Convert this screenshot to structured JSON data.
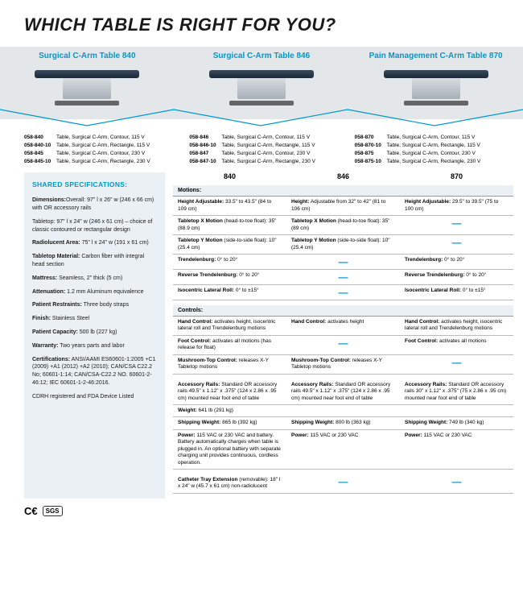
{
  "title": "WHICH TABLE IS RIGHT FOR YOU?",
  "products": [
    {
      "label": "Surgical C-Arm Table 840"
    },
    {
      "label": "Surgical C-Arm Table 846"
    },
    {
      "label": "Pain Management C-Arm Table 870"
    }
  ],
  "skus": [
    [
      {
        "code": "058-840",
        "desc": "Table, Surgical C-Arm, Contour, 115 V"
      },
      {
        "code": "058-840-10",
        "desc": "Table, Surgical C-Arm, Rectangle, 115 V"
      },
      {
        "code": "058-845",
        "desc": "Table, Surgical C-Arm, Contour, 230 V"
      },
      {
        "code": "058-845-10",
        "desc": "Table, Surgical C-Arm, Rectangle, 230 V"
      }
    ],
    [
      {
        "code": "058-846",
        "desc": "Table, Surgical C-Arm, Contour, 115 V"
      },
      {
        "code": "058-846-10",
        "desc": "Table, Surgical C-Arm, Rectangle, 115 V"
      },
      {
        "code": "058-847",
        "desc": "Table, Surgical C-Arm, Contour, 230 V"
      },
      {
        "code": "058-847-10",
        "desc": "Table, Surgical C-Arm, Rectangle, 230 V"
      }
    ],
    [
      {
        "code": "058-870",
        "desc": "Table, Surgical C-Arm, Contour, 115 V"
      },
      {
        "code": "058-870-10",
        "desc": "Table, Surgical C-Arm, Rectangle, 115 V"
      },
      {
        "code": "058-875",
        "desc": "Table, Surgical C-Arm, Contour, 230 V"
      },
      {
        "code": "058-875-10",
        "desc": "Table, Surgical C-Arm, Rectangle, 230 V"
      }
    ]
  ],
  "shared_title": "SHARED SPECIFICATIONS:",
  "shared": [
    {
      "label": "Dimensions:",
      "text": "Overall: 97\" l x 26\" w (246 x 66 cm) with OR accessory rails"
    },
    {
      "label": "",
      "text": "Tabletop: 97\" l x 24\" w (246 x 61 cm) – choice of classic contoured or rectangular design"
    },
    {
      "label": "Radiolucent Area:",
      "text": " 75\" l x 24\" w (191 x 61 cm)"
    },
    {
      "label": "Tabletop Material:",
      "text": " Carbon fiber with integral head section"
    },
    {
      "label": "Mattress:",
      "text": " Seamless, 2\" thick (5 cm)"
    },
    {
      "label": "Attenuation:",
      "text": " 1.2 mm Aluminum equivalence"
    },
    {
      "label": "Patient Restraints:",
      "text": " Three body straps"
    },
    {
      "label": "Finish:",
      "text": " Stainless Steel"
    },
    {
      "label": "Patient Capacity:",
      "text": " 500 lb (227 kg)"
    },
    {
      "label": "Warranty:",
      "text": " Two years parts and labor"
    },
    {
      "label": "Certifications:",
      "text": " ANSI/AAMI ES60601-1:2005 +C1 (2009) +A1 (2012) +A2 (2010); CAN/CSA C22.2 No; 60601-1:14; CAN/CSA-C22.2 NO. 60601-2-46:12; IEC 60601-1-2-46:2016."
    },
    {
      "label": "",
      "text": "CDRH registered and FDA Device Listed"
    }
  ],
  "cols": [
    "840",
    "846",
    "870"
  ],
  "sections": [
    {
      "label": "Motions:",
      "rows": [
        {
          "c": [
            "<strong>Height Adjustable:</strong> 33.5\" to 43.5\" (84 to 109 cm)",
            "<strong>Height:</strong> Adjustable from 32\" to 42\" (81 to 106 cm)",
            "<strong>Height Adjustable:</strong> 29.5\" to 39.5\" (75 to 100 cm)"
          ]
        },
        {
          "c": [
            "<strong>Tabletop X Motion</strong> (head-to-toe float): 35\" (88.9 cm)",
            "<strong>Tabletop X Motion</strong> (head-to-toe float): 35\" (89 cm)",
            "—"
          ]
        },
        {
          "c": [
            "<strong>Tabletop Y Motion</strong> (side-to-side float): 10\" (25.4 cm)",
            "<strong>Tabletop Y Motion</strong> (side-to-side float): 10\" (25.4 cm)",
            "—"
          ]
        },
        {
          "c": [
            "<strong>Trendelenburg:</strong> 0° to 20°",
            "—",
            "<strong>Trendelenburg:</strong> 0° to 20°"
          ]
        },
        {
          "c": [
            "<strong>Reverse Trendelenburg:</strong> 0° to 20°",
            "—",
            "<strong>Reverse Trendelenburg:</strong> 0° to 20°"
          ]
        },
        {
          "c": [
            "<strong>Isocentric Lateral Roll:</strong> 0° to ±15°",
            "—",
            "<strong>Isocentric Lateral Roll:</strong> 0° to ±15°"
          ]
        }
      ]
    },
    {
      "label": "Controls:",
      "rows": [
        {
          "c": [
            "<strong>Hand Control:</strong> activates height, isocentric lateral roll and Trendelenburg motions",
            "<strong>Hand Control:</strong> activates height",
            "<strong>Hand Control:</strong> activates height, isocentric lateral roll and Trendelenburg motions"
          ]
        },
        {
          "c": [
            "<strong>Foot Control:</strong> activates all motions (has release for float)",
            "—",
            "<strong>Foot Control:</strong> activates all motions"
          ]
        },
        {
          "c": [
            "<strong>Mushroom-Top Control:</strong> releases X-Y Tabletop motions",
            "<strong>Mushroom-Top Control:</strong> releases X-Y Tabletop motions",
            "—"
          ]
        }
      ]
    },
    {
      "label": "",
      "rows": [
        {
          "c": [
            "<strong>Accessory Rails:</strong> Standard OR accessory rails 49.5\" x 1.12\" x .375\" (124 x 2.86 x .95 cm) mounted near foot end of table",
            "<strong>Accessory Rails:</strong> Standard OR accessory rails 49.5\" x 1.12\" x .375\" (124 x 2.86 x .95 cm) mounted near foot end of table",
            "<strong>Accessory Rails:</strong> Standard OR accessory rails 30\" x 1.12\" x .375\" (75 x 2.86 x .95 cm) mounted near foot end of table"
          ]
        },
        {
          "c": [
            "<strong>Weight:</strong> 641 lb (291 kg)",
            "",
            ""
          ]
        },
        {
          "c": [
            "<strong>Shipping Weight:</strong> 865 lb (392 kg)",
            "<strong>Shipping Weight:</strong> 800 lb (363 kg)",
            "<strong>Shipping Weight:</strong> 749 lb (340 kg)"
          ]
        },
        {
          "c": [
            "<strong>Power:</strong> 115 VAC or 230 VAC and battery. Battery automatically charges when table is plugged in. An optional battery with separate charging unit provides continuous, cordless operation.",
            "<strong>Power:</strong> 115 VAC or 230 VAC",
            "<strong>Power:</strong> 115 VAC or 230 VAC"
          ]
        }
      ]
    },
    {
      "label": "",
      "rows": [
        {
          "c": [
            "<strong>Catheter Tray Extension</strong> (removable): 18\" l x 24\" w (45.7 x 61 cm) non-radiolucent",
            "—",
            "—"
          ]
        }
      ]
    }
  ],
  "footer": {
    "ce": "CE",
    "sgs": "SGS"
  },
  "colors": {
    "accent": "#0099c9",
    "banner": "#e3e7e9",
    "shared_bg": "#eaf0f4"
  }
}
